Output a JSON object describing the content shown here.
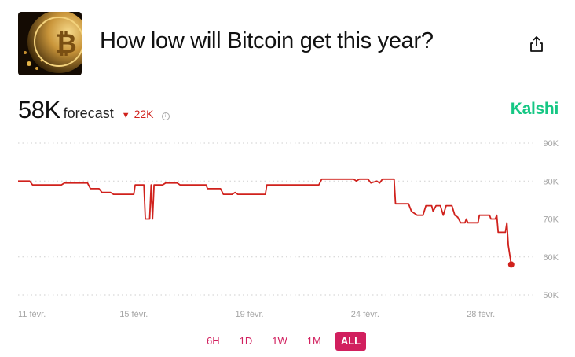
{
  "header": {
    "title": "How low will Bitcoin get this year?",
    "thumbnail_icon": "bitcoin-coin-image",
    "share_icon": "share-icon"
  },
  "summary": {
    "value": "58K",
    "label": "forecast",
    "delta": "22K",
    "delta_direction": "down",
    "delta_color": "#d0211c",
    "info_icon": "info-icon"
  },
  "brand": {
    "name": "Kalshi",
    "color": "#16c784"
  },
  "range_selector": {
    "options": [
      "6H",
      "1D",
      "1W",
      "1M",
      "ALL"
    ],
    "selected": "ALL",
    "accent": "#d11f5e"
  },
  "chart_data": {
    "type": "line",
    "title": "",
    "xlabel": "",
    "ylabel": "",
    "x_ticks": [
      "11 févr.",
      "15 févr.",
      "19 févr.",
      "24 févr.",
      "28 févr."
    ],
    "y_ticks": [
      "50K",
      "60K",
      "70K",
      "80K",
      "90K"
    ],
    "ylim": [
      50000,
      90000
    ],
    "grid": "horizontal-dotted",
    "line_color": "#d0211c",
    "series": [
      {
        "values": [
          [
            0,
            80000
          ],
          [
            0.4,
            80000
          ],
          [
            0.5,
            79000
          ],
          [
            1.5,
            79000
          ],
          [
            1.6,
            79500
          ],
          [
            2.4,
            79500
          ],
          [
            2.5,
            78000
          ],
          [
            2.8,
            78000
          ],
          [
            2.9,
            77000
          ],
          [
            3.2,
            77000
          ],
          [
            3.3,
            76500
          ],
          [
            4.0,
            76500
          ],
          [
            4.05,
            79000
          ],
          [
            4.35,
            79000
          ],
          [
            4.4,
            70000
          ],
          [
            4.55,
            70000
          ],
          [
            4.6,
            79000
          ],
          [
            4.65,
            70000
          ],
          [
            4.7,
            79000
          ],
          [
            5.0,
            79000
          ],
          [
            5.1,
            79500
          ],
          [
            5.5,
            79500
          ],
          [
            5.6,
            79000
          ],
          [
            6.5,
            79000
          ],
          [
            6.55,
            78000
          ],
          [
            7.0,
            78000
          ],
          [
            7.1,
            76500
          ],
          [
            7.4,
            76500
          ],
          [
            7.5,
            77000
          ],
          [
            7.6,
            76500
          ],
          [
            8.55,
            76500
          ],
          [
            8.6,
            79000
          ],
          [
            10.4,
            79000
          ],
          [
            10.5,
            80500
          ],
          [
            11.6,
            80500
          ],
          [
            11.7,
            80000
          ],
          [
            11.8,
            80500
          ],
          [
            12.1,
            80500
          ],
          [
            12.2,
            79500
          ],
          [
            12.4,
            80000
          ],
          [
            12.5,
            79500
          ],
          [
            12.6,
            80500
          ],
          [
            13.0,
            80500
          ],
          [
            13.05,
            74000
          ],
          [
            13.5,
            74000
          ],
          [
            13.6,
            72000
          ],
          [
            13.8,
            71000
          ],
          [
            14.0,
            71000
          ],
          [
            14.1,
            73500
          ],
          [
            14.3,
            73500
          ],
          [
            14.35,
            72000
          ],
          [
            14.45,
            73500
          ],
          [
            14.6,
            73500
          ],
          [
            14.7,
            71000
          ],
          [
            14.8,
            73500
          ],
          [
            15.0,
            73500
          ],
          [
            15.1,
            71000
          ],
          [
            15.2,
            70500
          ],
          [
            15.3,
            69000
          ],
          [
            15.45,
            69000
          ],
          [
            15.5,
            70000
          ],
          [
            15.55,
            69000
          ],
          [
            15.9,
            69000
          ],
          [
            15.95,
            71000
          ],
          [
            16.3,
            71000
          ],
          [
            16.35,
            70000
          ],
          [
            16.5,
            70000
          ],
          [
            16.55,
            71000
          ],
          [
            16.6,
            66500
          ],
          [
            16.85,
            66500
          ],
          [
            16.9,
            69000
          ],
          [
            16.95,
            63000
          ],
          [
            17.05,
            58000
          ]
        ]
      }
    ],
    "x_domain": [
      0,
      17.3
    ],
    "x_tick_positions": [
      0,
      4,
      8,
      12,
      16
    ]
  }
}
